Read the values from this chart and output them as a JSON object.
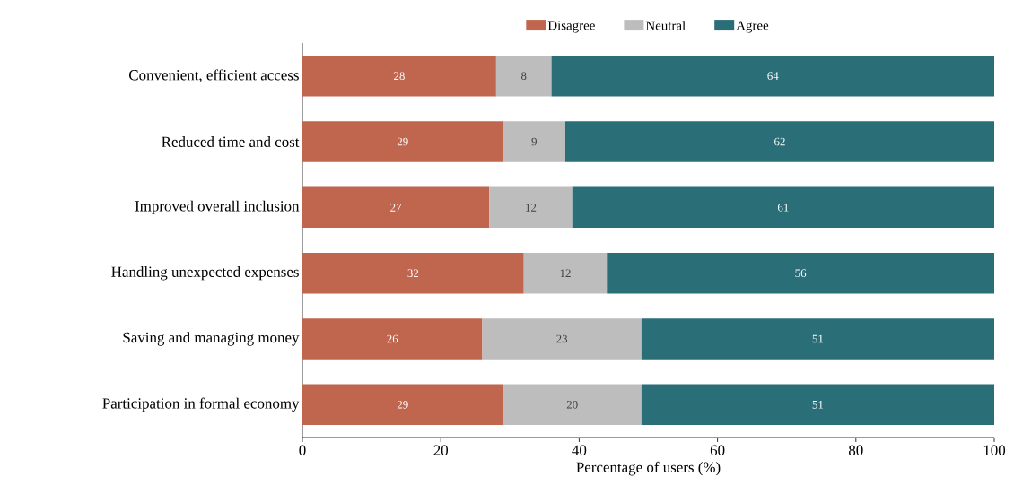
{
  "chart_data": {
    "type": "bar",
    "orientation": "horizontal",
    "stacked": true,
    "xlabel": "Percentage of users (%)",
    "categories": [
      "Convenient, efficient access",
      "Reduced time and cost",
      "Improved overall inclusion",
      "Handling unexpected expenses",
      "Saving and managing money",
      "Participation in formal economy"
    ],
    "series": [
      {
        "name": "Disagree",
        "color": "#c0654e",
        "values": [
          28,
          29,
          27,
          32,
          26,
          29
        ]
      },
      {
        "name": "Neutral",
        "color": "#bdbdbd",
        "values": [
          8,
          9,
          12,
          12,
          23,
          20
        ]
      },
      {
        "name": "Agree",
        "color": "#2a6e78",
        "values": [
          64,
          62,
          61,
          56,
          51,
          51
        ]
      }
    ],
    "xlim": [
      0,
      100
    ],
    "xticks": [
      0,
      20,
      40,
      60,
      80,
      100
    ],
    "data_labels": true,
    "legend": "top",
    "grid": false
  }
}
